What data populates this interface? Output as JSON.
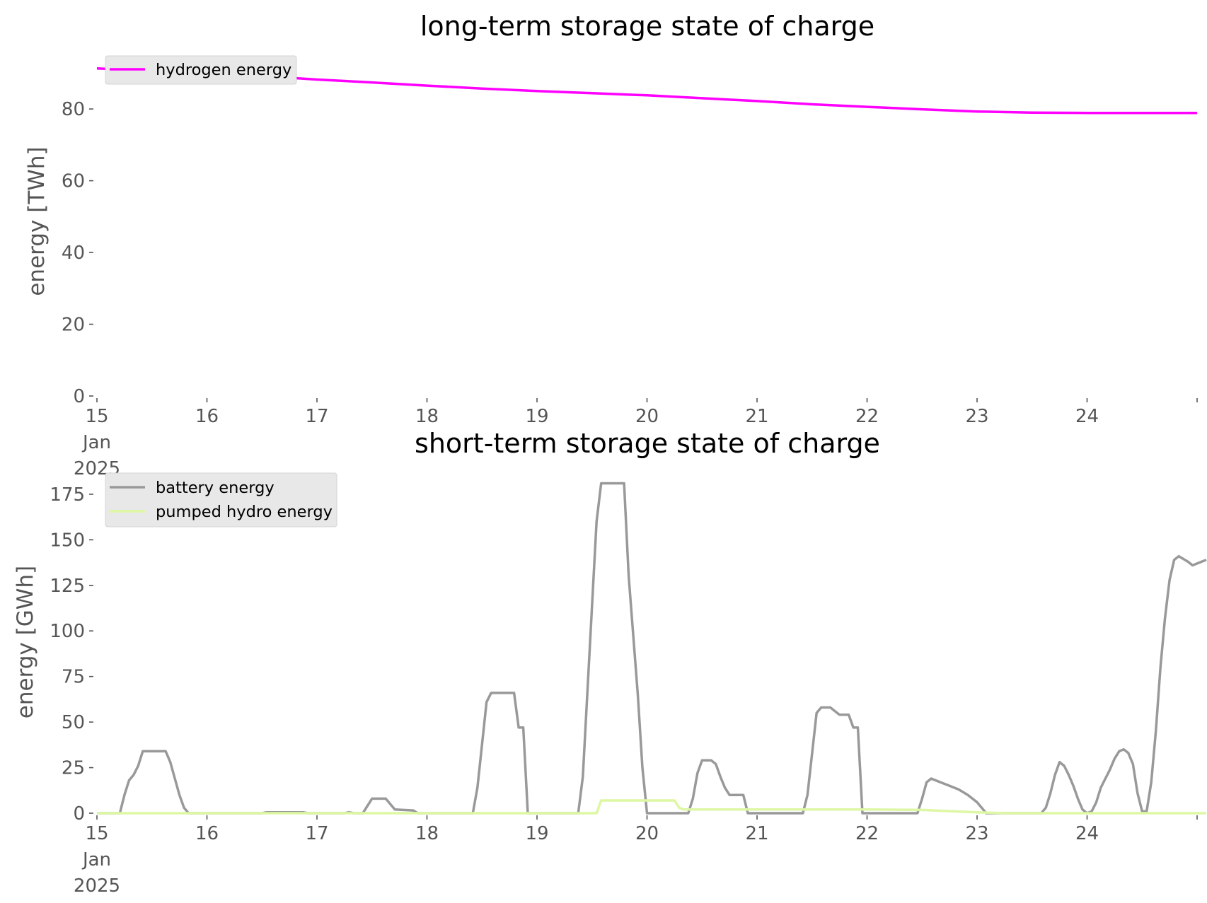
{
  "chart_data": [
    {
      "type": "line",
      "title": "long-term storage state of charge",
      "xlabel": "",
      "ylabel": "energy [TWh]",
      "xlim": [
        "2025-01-15",
        "2025-01-25"
      ],
      "ylim": [
        0,
        95
      ],
      "x_ticks": [
        "2025-01-15",
        "2025-01-16",
        "2025-01-17",
        "2025-01-18",
        "2025-01-19",
        "2025-01-20",
        "2025-01-21",
        "2025-01-22",
        "2025-01-23",
        "2025-01-24",
        "2025-01-25"
      ],
      "x_tick_labels": [
        [
          "15",
          "Jan",
          "2025"
        ],
        [
          "16"
        ],
        [
          "17"
        ],
        [
          "18"
        ],
        [
          "19"
        ],
        [
          "20"
        ],
        [
          "21"
        ],
        [
          "22"
        ],
        [
          "23"
        ],
        [
          "24"
        ],
        [
          ""
        ]
      ],
      "y_ticks": [
        0,
        20,
        40,
        60,
        80
      ],
      "y_tick_labels": [
        "0",
        "20",
        "40",
        "60",
        "80"
      ],
      "grid": false,
      "legend_position": "top-left",
      "series": [
        {
          "name": "hydrogen energy",
          "color": "#ff00ff",
          "points": [
            [
              "2025-01-15 00:00",
              91.3
            ],
            [
              "2025-01-15 12:00",
              90.6
            ],
            [
              "2025-01-16 00:00",
              89.9
            ],
            [
              "2025-01-16 12:00",
              89.2
            ],
            [
              "2025-01-17 00:00",
              88.2
            ],
            [
              "2025-01-17 06:00",
              87.8
            ],
            [
              "2025-01-17 12:00",
              87.4
            ],
            [
              "2025-01-18 00:00",
              86.5
            ],
            [
              "2025-01-18 12:00",
              85.7
            ],
            [
              "2025-01-19 00:00",
              85.0
            ],
            [
              "2025-01-19 12:00",
              84.4
            ],
            [
              "2025-01-20 00:00",
              83.8
            ],
            [
              "2025-01-20 12:00",
              83.0
            ],
            [
              "2025-01-21 00:00",
              82.2
            ],
            [
              "2025-01-21 12:00",
              81.3
            ],
            [
              "2025-01-22 00:00",
              80.6
            ],
            [
              "2025-01-22 12:00",
              79.9
            ],
            [
              "2025-01-23 00:00",
              79.3
            ],
            [
              "2025-01-23 12:00",
              79.0
            ],
            [
              "2025-01-24 00:00",
              78.9
            ],
            [
              "2025-01-25 00:00",
              78.9
            ]
          ]
        }
      ]
    },
    {
      "type": "line",
      "title": "short-term storage state of charge",
      "xlabel": "",
      "ylabel": "energy [GWh]",
      "xlim": [
        "2025-01-15",
        "2025-01-25"
      ],
      "ylim": [
        0,
        187
      ],
      "x_ticks": [
        "2025-01-15",
        "2025-01-16",
        "2025-01-17",
        "2025-01-18",
        "2025-01-19",
        "2025-01-20",
        "2025-01-21",
        "2025-01-22",
        "2025-01-23",
        "2025-01-24",
        "2025-01-25"
      ],
      "x_tick_labels": [
        [
          "15",
          "Jan",
          "2025"
        ],
        [
          "16"
        ],
        [
          "17"
        ],
        [
          "18"
        ],
        [
          "19"
        ],
        [
          "20"
        ],
        [
          "21"
        ],
        [
          "22"
        ],
        [
          "23"
        ],
        [
          "24"
        ],
        [
          ""
        ]
      ],
      "y_ticks": [
        0,
        25,
        50,
        75,
        100,
        125,
        150,
        175
      ],
      "y_tick_labels": [
        "0",
        "25",
        "50",
        "75",
        "100",
        "125",
        "150",
        "175"
      ],
      "grid": false,
      "legend_position": "top-left",
      "series": [
        {
          "name": "battery energy",
          "color": "#999999",
          "points": [
            [
              "2025-01-15 00:00",
              0
            ],
            [
              "2025-01-15 05:00",
              0
            ],
            [
              "2025-01-15 06:00",
              10
            ],
            [
              "2025-01-15 07:00",
              18
            ],
            [
              "2025-01-15 08:00",
              21
            ],
            [
              "2025-01-15 09:00",
              26
            ],
            [
              "2025-01-15 10:00",
              34
            ],
            [
              "2025-01-15 15:00",
              34
            ],
            [
              "2025-01-15 16:00",
              28
            ],
            [
              "2025-01-15 18:00",
              10
            ],
            [
              "2025-01-15 19:00",
              3
            ],
            [
              "2025-01-15 20:00",
              0
            ],
            [
              "2025-01-16 12:00",
              0
            ],
            [
              "2025-01-16 13:00",
              0.5
            ],
            [
              "2025-01-16 21:00",
              0.5
            ],
            [
              "2025-01-16 22:00",
              0
            ],
            [
              "2025-01-17 06:00",
              0
            ],
            [
              "2025-01-17 07:00",
              0.5
            ],
            [
              "2025-01-17 08:00",
              0
            ],
            [
              "2025-01-17 10:00",
              0
            ],
            [
              "2025-01-17 12:00",
              8
            ],
            [
              "2025-01-17 15:00",
              8
            ],
            [
              "2025-01-17 17:00",
              2
            ],
            [
              "2025-01-17 21:00",
              1.5
            ],
            [
              "2025-01-17 22:00",
              0
            ],
            [
              "2025-01-18 10:00",
              0
            ],
            [
              "2025-01-18 11:00",
              14
            ],
            [
              "2025-01-18 13:00",
              61
            ],
            [
              "2025-01-18 14:00",
              66
            ],
            [
              "2025-01-18 19:00",
              66
            ],
            [
              "2025-01-18 20:00",
              47
            ],
            [
              "2025-01-18 21:00",
              47
            ],
            [
              "2025-01-18 22:00",
              0
            ],
            [
              "2025-01-19 09:00",
              0
            ],
            [
              "2025-01-19 10:00",
              20
            ],
            [
              "2025-01-19 13:00",
              160
            ],
            [
              "2025-01-19 14:00",
              181
            ],
            [
              "2025-01-19 19:00",
              181
            ],
            [
              "2025-01-19 20:00",
              130
            ],
            [
              "2025-01-19 22:00",
              65
            ],
            [
              "2025-01-19 23:00",
              25
            ],
            [
              "2025-01-20 00:00",
              0
            ],
            [
              "2025-01-20 09:00",
              0
            ],
            [
              "2025-01-20 10:00",
              8
            ],
            [
              "2025-01-20 11:00",
              22
            ],
            [
              "2025-01-20 12:00",
              29
            ],
            [
              "2025-01-20 14:00",
              29
            ],
            [
              "2025-01-20 15:00",
              27
            ],
            [
              "2025-01-20 16:00",
              20
            ],
            [
              "2025-01-20 17:00",
              14
            ],
            [
              "2025-01-20 18:00",
              10
            ],
            [
              "2025-01-20 21:00",
              10
            ],
            [
              "2025-01-20 22:00",
              0
            ],
            [
              "2025-01-21 10:00",
              0
            ],
            [
              "2025-01-21 11:00",
              10
            ],
            [
              "2025-01-21 13:00",
              55
            ],
            [
              "2025-01-21 14:00",
              58
            ],
            [
              "2025-01-21 16:00",
              58
            ],
            [
              "2025-01-21 17:00",
              56
            ],
            [
              "2025-01-21 18:00",
              54
            ],
            [
              "2025-01-21 20:00",
              54
            ],
            [
              "2025-01-21 21:00",
              47
            ],
            [
              "2025-01-21 22:00",
              47
            ],
            [
              "2025-01-21 23:00",
              0
            ],
            [
              "2025-01-22 11:00",
              0
            ],
            [
              "2025-01-22 12:00",
              8
            ],
            [
              "2025-01-22 13:00",
              17
            ],
            [
              "2025-01-22 14:00",
              19
            ],
            [
              "2025-01-22 16:00",
              17
            ],
            [
              "2025-01-22 18:00",
              15
            ],
            [
              "2025-01-22 20:00",
              13
            ],
            [
              "2025-01-22 22:00",
              10
            ],
            [
              "2025-01-23 00:00",
              6
            ],
            [
              "2025-01-23 01:00",
              3
            ],
            [
              "2025-01-23 02:00",
              0
            ],
            [
              "2025-01-23 14:00",
              0
            ],
            [
              "2025-01-23 15:00",
              3
            ],
            [
              "2025-01-23 16:00",
              11
            ],
            [
              "2025-01-23 17:00",
              21
            ],
            [
              "2025-01-23 18:00",
              28
            ],
            [
              "2025-01-23 19:00",
              26
            ],
            [
              "2025-01-23 20:00",
              21
            ],
            [
              "2025-01-23 21:00",
              15
            ],
            [
              "2025-01-23 22:00",
              8
            ],
            [
              "2025-01-23 23:00",
              2
            ],
            [
              "2025-01-24 00:00",
              0
            ],
            [
              "2025-01-24 01:00",
              1
            ],
            [
              "2025-01-24 02:00",
              6
            ],
            [
              "2025-01-24 03:00",
              14
            ],
            [
              "2025-01-24 04:00",
              19
            ],
            [
              "2025-01-24 05:00",
              24
            ],
            [
              "2025-01-24 06:00",
              30
            ],
            [
              "2025-01-24 07:00",
              34
            ],
            [
              "2025-01-24 08:00",
              35
            ],
            [
              "2025-01-24 09:00",
              33
            ],
            [
              "2025-01-24 10:00",
              27
            ],
            [
              "2025-01-24 11:00",
              11
            ],
            [
              "2025-01-24 12:00",
              1
            ],
            [
              "2025-01-24 13:00",
              1
            ],
            [
              "2025-01-24 14:00",
              17
            ],
            [
              "2025-01-24 15:00",
              45
            ],
            [
              "2025-01-24 16:00",
              80
            ],
            [
              "2025-01-24 17:00",
              107
            ],
            [
              "2025-01-24 18:00",
              128
            ],
            [
              "2025-01-24 19:00",
              139
            ],
            [
              "2025-01-24 20:00",
              141
            ],
            [
              "2025-01-24 22:00",
              138
            ],
            [
              "2025-01-24 23:00",
              136
            ],
            [
              "2025-01-25 00:00",
              137
            ],
            [
              "2025-01-25 01:00",
              138
            ],
            [
              "2025-01-25 02:00",
              139
            ]
          ]
        },
        {
          "name": "pumped hydro energy",
          "color": "#ddf7a4",
          "points": [
            [
              "2025-01-15 00:00",
              0
            ],
            [
              "2025-01-19 13:00",
              0
            ],
            [
              "2025-01-19 14:00",
              7
            ],
            [
              "2025-01-20 06:00",
              7
            ],
            [
              "2025-01-20 07:00",
              3
            ],
            [
              "2025-01-20 08:00",
              2
            ],
            [
              "2025-01-21 00:00",
              2
            ],
            [
              "2025-01-22 00:00",
              2
            ],
            [
              "2025-01-22 12:00",
              1.8
            ],
            [
              "2025-01-23 00:00",
              0.5
            ],
            [
              "2025-01-23 06:00",
              0
            ],
            [
              "2025-01-25 02:00",
              0
            ]
          ]
        }
      ]
    }
  ]
}
